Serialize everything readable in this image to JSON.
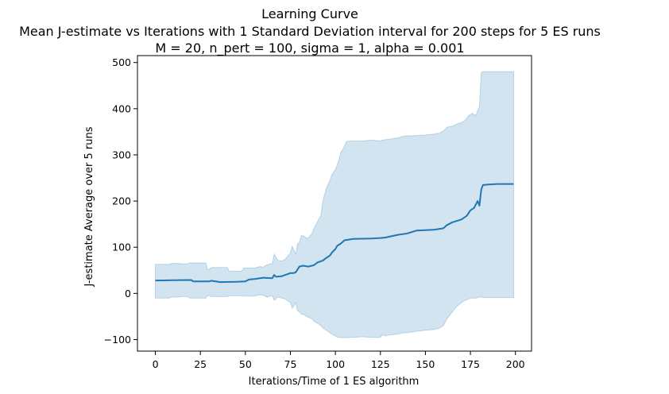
{
  "chart_data": {
    "type": "line",
    "title": "Learning Curve",
    "subtitle": "Mean J-estimate vs Iterations with 1 Standard Deviation interval for 200 steps for 5 ES runs",
    "subtitle2": "M = 20, n_pert = 100, sigma = 1, alpha = 0.001",
    "xlabel": "Iterations/Time of 1 ES algorithm",
    "ylabel": "J-estimate Average over 5 runs",
    "xlim": [
      -9.95,
      208.95
    ],
    "ylim": [
      -125,
      515
    ],
    "xticks": [
      0,
      25,
      50,
      75,
      100,
      125,
      150,
      175,
      200
    ],
    "yticks": [
      -100,
      0,
      100,
      200,
      300,
      400,
      500
    ],
    "grid": false,
    "colors": {
      "line": "#1f77b4",
      "band": "#1f77b4",
      "band_opacity": 0.2
    },
    "series": [
      {
        "x": [
          0,
          10,
          20,
          21,
          30,
          31,
          36,
          45,
          50,
          52,
          55,
          60,
          65,
          66,
          67,
          70,
          75,
          77,
          78,
          80,
          82,
          85,
          88,
          90,
          93,
          95,
          97,
          98,
          100,
          101,
          103,
          105,
          110,
          120,
          125,
          128,
          130,
          135,
          137,
          140,
          145,
          150,
          155,
          160,
          162,
          165,
          170,
          173,
          175,
          177,
          179,
          180,
          181,
          182,
          183,
          185,
          190,
          195,
          199
        ],
        "y": [
          28,
          28.5,
          29,
          26,
          26,
          27.5,
          24.5,
          25,
          26,
          30,
          31,
          34,
          33,
          40,
          36,
          37,
          44,
          44,
          46,
          58,
          60,
          58,
          61,
          67,
          71,
          77,
          82,
          88,
          96,
          103,
          108,
          115,
          118,
          119,
          120,
          121,
          123,
          127,
          128,
          130,
          136,
          137,
          138,
          141,
          148,
          154,
          160,
          168,
          180,
          185,
          200,
          190,
          225,
          235,
          235,
          236,
          237,
          237,
          237
        ]
      }
    ],
    "band": {
      "x": [
        0,
        8,
        9,
        13,
        14,
        18,
        19,
        28,
        29,
        30,
        31,
        40,
        41,
        48,
        49,
        55,
        58,
        60,
        62,
        65,
        66,
        67,
        68,
        70,
        72,
        75,
        76,
        78,
        79,
        80,
        81,
        82,
        84,
        85,
        87,
        88,
        90,
        92,
        93,
        95,
        97,
        98,
        100,
        101,
        102,
        103,
        105,
        106,
        108,
        110,
        115,
        120,
        125,
        126,
        128,
        130,
        135,
        137,
        140,
        145,
        150,
        155,
        158,
        160,
        162,
        165,
        167,
        170,
        172,
        174,
        176,
        178,
        180,
        181,
        182,
        185,
        190,
        195,
        199
      ],
      "upper": [
        63,
        63,
        65,
        65,
        64,
        64,
        66,
        66,
        52,
        52,
        56,
        56,
        48,
        48,
        55,
        55,
        58,
        57,
        62,
        65,
        85,
        78,
        72,
        70,
        73,
        88,
        102,
        85,
        108,
        110,
        125,
        125,
        120,
        120,
        130,
        140,
        155,
        170,
        200,
        228,
        245,
        257,
        268,
        278,
        290,
        305,
        318,
        328,
        330,
        330,
        330,
        332,
        330,
        332,
        333,
        334,
        337,
        340,
        341,
        342,
        343,
        345,
        347,
        352,
        360,
        362,
        366,
        370,
        375,
        385,
        390,
        385,
        405,
        478,
        480,
        480,
        480,
        480,
        480
      ],
      "lower": [
        -10,
        -10,
        -8,
        -8,
        -7,
        -7,
        -10,
        -10,
        -5,
        -5,
        -7,
        -7,
        -5,
        -5,
        -6,
        -6,
        -3,
        -4,
        -8,
        -5,
        -15,
        -12,
        -8,
        -10,
        -12,
        -20,
        -32,
        -20,
        -38,
        -40,
        -45,
        -45,
        -50,
        -52,
        -55,
        -60,
        -65,
        -70,
        -75,
        -80,
        -85,
        -88,
        -92,
        -95,
        -95,
        -96,
        -96,
        -96,
        -95,
        -95,
        -94,
        -95,
        -95,
        -90,
        -92,
        -90,
        -88,
        -86,
        -85,
        -82,
        -80,
        -78,
        -75,
        -70,
        -55,
        -40,
        -30,
        -20,
        -15,
        -12,
        -10,
        -10,
        -8,
        -8,
        -9,
        -9,
        -9,
        -9,
        -9
      ]
    }
  }
}
